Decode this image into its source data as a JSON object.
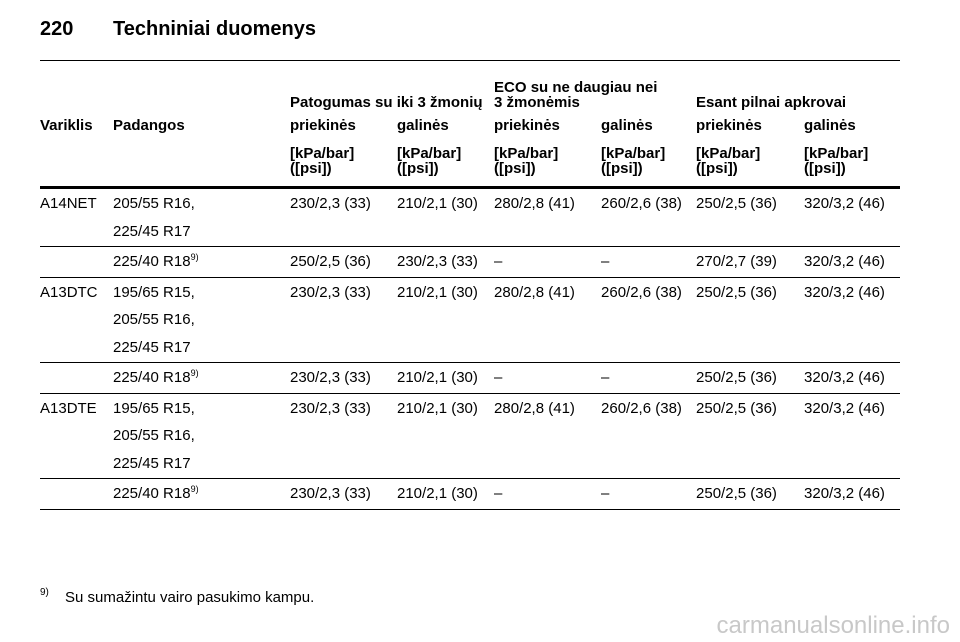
{
  "header": {
    "page": "220",
    "title": "Techniniai duomenys"
  },
  "table": {
    "groups": [
      [
        "Patogumas su iki 3 žmonių"
      ],
      [
        "ECO su ne daugiau nei",
        "3 žmonėmis"
      ],
      [
        "Esant pilnai apkrovai"
      ]
    ],
    "columns": [
      "Variklis",
      "Padangos",
      "priekinės",
      "galinės",
      "priekinės",
      "galinės",
      "priekinės",
      "galinės"
    ],
    "unit": [
      "[kPa/bar]",
      "([psi])"
    ],
    "rows": [
      {
        "engine": "A14NET",
        "tires": [
          "205/55 R16,",
          "225/45 R17"
        ],
        "values": [
          "230/2,3 (33)",
          "210/2,1 (30)",
          "280/2,8 (41)",
          "260/2,6 (38)",
          "250/2,5 (36)",
          "320/3,2 (46)"
        ]
      },
      {
        "tires": [
          "225/40 R18"
        ],
        "tire_note": "9)",
        "values": [
          "250/2,5 (36)",
          "230/2,3 (33)",
          "–",
          "–",
          "270/2,7 (39)",
          "320/3,2 (46)"
        ]
      },
      {
        "engine": "A13DTC",
        "tires": [
          "195/65 R15,",
          "205/55 R16,",
          "225/45 R17"
        ],
        "values": [
          "230/2,3 (33)",
          "210/2,1 (30)",
          "280/2,8 (41)",
          "260/2,6 (38)",
          "250/2,5 (36)",
          "320/3,2 (46)"
        ]
      },
      {
        "tires": [
          "225/40 R18"
        ],
        "tire_note": "9)",
        "values": [
          "230/2,3 (33)",
          "210/2,1 (30)",
          "–",
          "–",
          "250/2,5 (36)",
          "320/3,2 (46)"
        ]
      },
      {
        "engine": "A13DTE",
        "tires": [
          "195/65 R15,",
          "205/55 R16,",
          "225/45 R17"
        ],
        "values": [
          "230/2,3 (33)",
          "210/2,1 (30)",
          "280/2,8 (41)",
          "260/2,6 (38)",
          "250/2,5 (36)",
          "320/3,2 (46)"
        ]
      },
      {
        "tires": [
          "225/40 R18"
        ],
        "tire_note": "9)",
        "values": [
          "230/2,3 (33)",
          "210/2,1 (30)",
          "–",
          "–",
          "250/2,5 (36)",
          "320/3,2 (46)"
        ]
      }
    ]
  },
  "footnote": {
    "mark": "9)",
    "text": "Su sumažintu vairo pasukimo kampu."
  },
  "watermark": "carmanualsonline.info"
}
